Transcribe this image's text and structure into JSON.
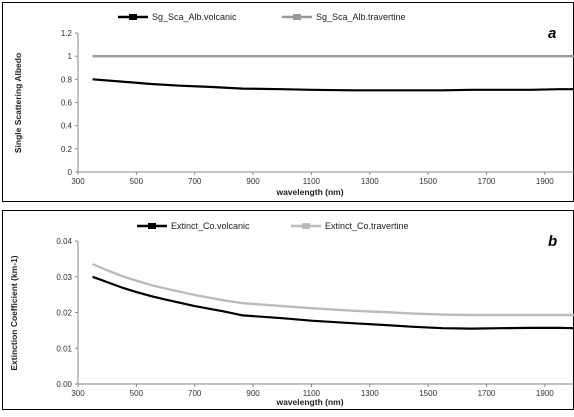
{
  "chart_data": [
    {
      "type": "line",
      "panel_label": "a",
      "xlabel": "wavelength (nm)",
      "ylabel": "Single Scattering Albedo",
      "xlim": [
        300,
        2000
      ],
      "ylim": [
        0,
        1.2
      ],
      "x_ticks": [
        "300",
        "500",
        "700",
        "900",
        "1100",
        "1300",
        "1500",
        "1700",
        "1900"
      ],
      "y_ticks": [
        "0",
        "0.2",
        "0.4",
        "0.6",
        "0.8",
        "1",
        "1.2"
      ],
      "legend_position": "top",
      "series": [
        {
          "name": "Sg_Sca_Alb.volcanic",
          "color": "#000000",
          "x": [
            350,
            450,
            550,
            650,
            750,
            865,
            1000,
            1100,
            1240,
            1350,
            1450,
            1550,
            1650,
            1750,
            1850,
            1950,
            2000
          ],
          "y": [
            0.8,
            0.78,
            0.76,
            0.745,
            0.735,
            0.72,
            0.715,
            0.71,
            0.705,
            0.705,
            0.705,
            0.705,
            0.71,
            0.71,
            0.71,
            0.715,
            0.715
          ]
        },
        {
          "name": "Sg_Sca_Alb.travertine",
          "color": "#999999",
          "x": [
            350,
            500,
            700,
            900,
            1100,
            1300,
            1500,
            1700,
            1900,
            2000
          ],
          "y": [
            1.0,
            1.0,
            1.0,
            1.0,
            1.0,
            1.0,
            1.0,
            1.0,
            1.0,
            1.0
          ]
        }
      ]
    },
    {
      "type": "line",
      "panel_label": "b",
      "xlabel": "wavelength (nm)",
      "ylabel": "Extinction Coefficient (km-1)",
      "xlim": [
        300,
        2000
      ],
      "ylim": [
        0,
        0.04
      ],
      "x_ticks": [
        "300",
        "500",
        "700",
        "900",
        "1100",
        "1300",
        "1500",
        "1700",
        "1900"
      ],
      "y_ticks": [
        "0.00",
        "0.01",
        "0.02",
        "0.03",
        "0.04"
      ],
      "legend_position": "top",
      "series": [
        {
          "name": "Extinct_Co.volcanic",
          "color": "#000000",
          "x": [
            350,
            400,
            450,
            500,
            550,
            600,
            700,
            800,
            865,
            1000,
            1100,
            1240,
            1350,
            1450,
            1550,
            1650,
            1750,
            1850,
            1950,
            2000
          ],
          "y": [
            0.03,
            0.0285,
            0.027,
            0.0257,
            0.0246,
            0.0236,
            0.0218,
            0.0203,
            0.0192,
            0.0184,
            0.0177,
            0.017,
            0.0165,
            0.016,
            0.0156,
            0.0155,
            0.0156,
            0.0157,
            0.0157,
            0.0156
          ]
        },
        {
          "name": "Extinct_Co.travertine",
          "color": "#bbbbbb",
          "x": [
            350,
            400,
            450,
            500,
            550,
            600,
            700,
            800,
            865,
            1000,
            1100,
            1240,
            1350,
            1450,
            1550,
            1650,
            1750,
            1850,
            1950,
            2000
          ],
          "y": [
            0.0335,
            0.0318,
            0.0302,
            0.0289,
            0.0277,
            0.0267,
            0.0249,
            0.0234,
            0.0226,
            0.0218,
            0.0212,
            0.0205,
            0.0201,
            0.0197,
            0.0194,
            0.0193,
            0.0193,
            0.0193,
            0.0193,
            0.0193
          ]
        }
      ]
    }
  ]
}
